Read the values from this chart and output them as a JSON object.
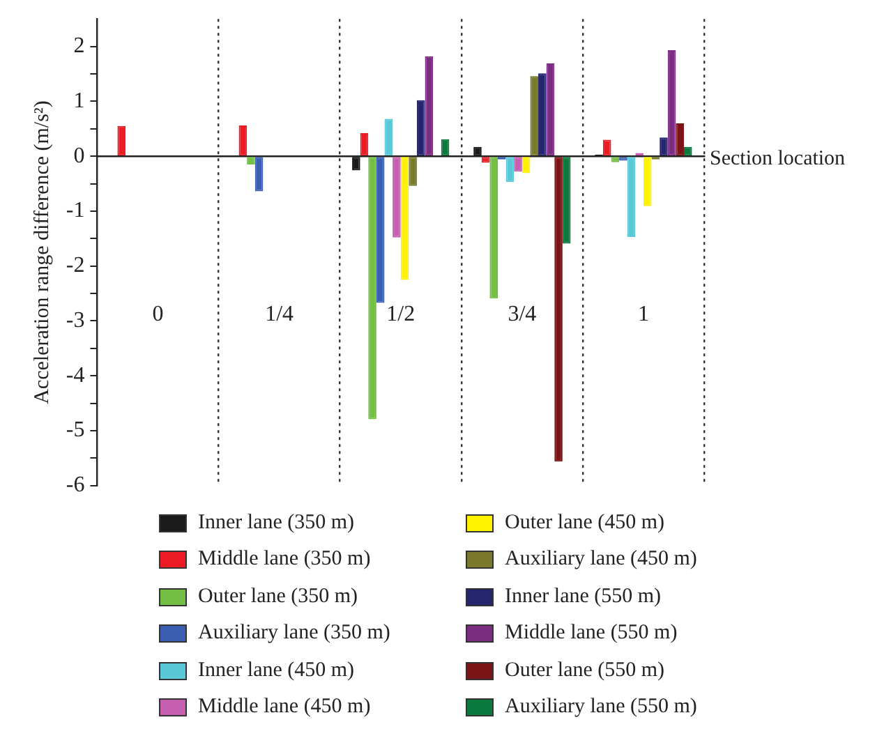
{
  "chart_data": {
    "type": "bar",
    "xlabel": "Section location",
    "ylabel": "Acceleration range difference (m/s²)",
    "categories": [
      "0",
      "1/4",
      "1/2",
      "3/4",
      "1"
    ],
    "ylim": [
      -6,
      2.5
    ],
    "yticks": [
      -6,
      {
        "value": -5.5,
        "label": null
      },
      -5,
      {
        "value": -4.5,
        "label": null
      },
      -4,
      {
        "value": -3.5,
        "label": null
      },
      -3,
      {
        "value": -2.5,
        "label": null
      },
      -2,
      {
        "value": -1.5,
        "label": null
      },
      -1,
      {
        "value": -0.5,
        "label": null
      },
      0,
      {
        "value": 0.5,
        "label": null
      },
      1,
      {
        "value": 1.5,
        "label": null
      },
      2
    ],
    "grid": "x",
    "legend": "bottom",
    "series": [
      {
        "name": "Inner lane (350 m)",
        "color": "#1a1a1a",
        "values": [
          0.01,
          0.01,
          -0.26,
          0.17,
          0.03
        ]
      },
      {
        "name": "Middle lane (350 m)",
        "color": "#ed1c24",
        "values": [
          0.55,
          0.56,
          0.42,
          -0.12,
          0.3
        ]
      },
      {
        "name": "Outer lane (350 m)",
        "color": "#72bf44",
        "values": [
          0,
          -0.15,
          -4.79,
          -2.59,
          -0.11
        ]
      },
      {
        "name": "Auxiliary lane (350 m)",
        "color": "#3a5fb0",
        "values": [
          0,
          -0.64,
          -2.67,
          -0.06,
          -0.08
        ]
      },
      {
        "name": "Inner lane (450 m)",
        "color": "#5bc8d8",
        "values": [
          0,
          0,
          0.68,
          -0.47,
          -1.47
        ]
      },
      {
        "name": "Middle lane (450 m)",
        "color": "#c65fb0",
        "values": [
          0,
          0,
          -1.48,
          -0.28,
          0.06
        ]
      },
      {
        "name": "Outer lane (450 m)",
        "color": "#fff200",
        "values": [
          0,
          0,
          -2.25,
          -0.31,
          -0.91
        ]
      },
      {
        "name": "Auxiliary lane (450 m)",
        "color": "#7a7a2a",
        "values": [
          0,
          0,
          -0.54,
          1.46,
          -0.06
        ]
      },
      {
        "name": "Inner lane (550 m)",
        "color": "#25256e",
        "values": [
          0,
          0,
          1.02,
          1.51,
          0.34
        ]
      },
      {
        "name": "Middle lane (550 m)",
        "color": "#7b2d82",
        "values": [
          0,
          0,
          1.82,
          1.69,
          1.93
        ]
      },
      {
        "name": "Outer lane (550 m)",
        "color": "#7a1417",
        "values": [
          0,
          0,
          0,
          -5.56,
          0.6
        ]
      },
      {
        "name": "Auxiliary lane (550 m)",
        "color": "#0a7a3c",
        "values": [
          0,
          0,
          0.31,
          -1.59,
          0.17
        ]
      }
    ]
  }
}
